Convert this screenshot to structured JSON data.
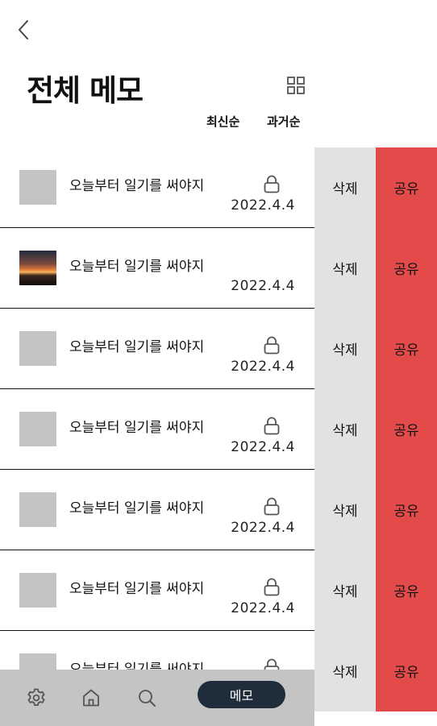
{
  "header": {
    "title": "전체 메모",
    "back_icon": "chevron-left-icon",
    "grid_icon": "grid-icon"
  },
  "sort": {
    "latest_label": "최신순",
    "oldest_label": "과거순"
  },
  "memos": [
    {
      "title": "오늘부터 일기를 써야지",
      "date": "2022.4.4",
      "locked": true,
      "thumb": "placeholder",
      "delete_label": "삭제",
      "share_label": "공유"
    },
    {
      "title": "오늘부터 일기를 써야지",
      "date": "2022.4.4",
      "locked": false,
      "thumb": "sunset-photo",
      "delete_label": "삭제",
      "share_label": "공유"
    },
    {
      "title": "오늘부터 일기를 써야지",
      "date": "2022.4.4",
      "locked": true,
      "thumb": "placeholder",
      "delete_label": "삭제",
      "share_label": "공유"
    },
    {
      "title": "오늘부터 일기를 써야지",
      "date": "2022.4.4",
      "locked": true,
      "thumb": "placeholder",
      "delete_label": "삭제",
      "share_label": "공유"
    },
    {
      "title": "오늘부터 일기를 써야지",
      "date": "2022.4.4",
      "locked": true,
      "thumb": "placeholder",
      "delete_label": "삭제",
      "share_label": "공유"
    },
    {
      "title": "오늘부터 일기를 써야지",
      "date": "2022.4.4",
      "locked": true,
      "thumb": "placeholder",
      "delete_label": "삭제",
      "share_label": "공유"
    },
    {
      "title": "오늘부터 일기를 써야지",
      "date": "",
      "locked": true,
      "thumb": "placeholder",
      "delete_label": "삭제",
      "share_label": "공유"
    }
  ],
  "bottom_nav": {
    "settings_icon": "gear-icon",
    "home_icon": "home-icon",
    "search_icon": "search-icon",
    "memo_label": "메모"
  },
  "colors": {
    "share_bg": "#e24b4a",
    "delete_bg": "#e2e2e2",
    "nav_bg": "#c4c4c4",
    "memo_pill_bg": "#1f2d3a",
    "thumb_placeholder": "#c4c4c4"
  }
}
